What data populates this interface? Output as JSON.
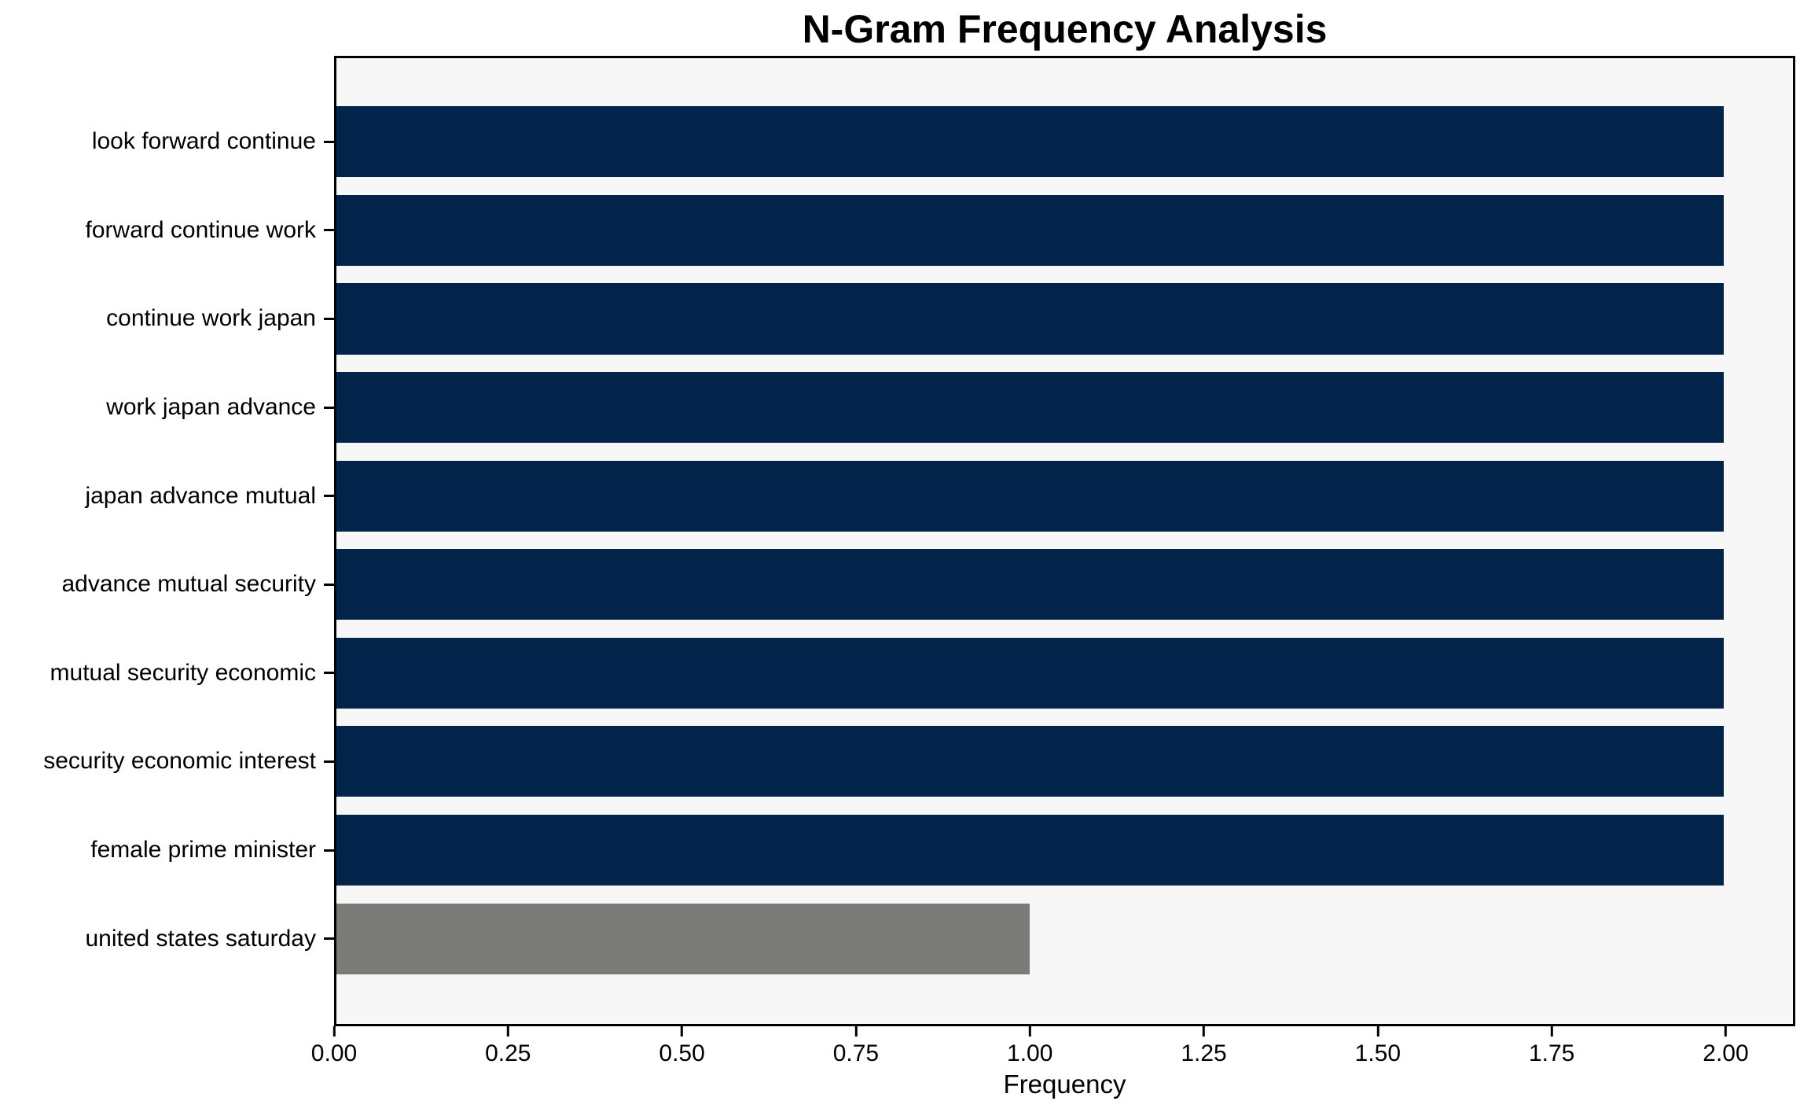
{
  "chart_data": {
    "type": "bar",
    "orientation": "horizontal",
    "title": "N-Gram Frequency Analysis",
    "xlabel": "Frequency",
    "ylabel": "",
    "categories": [
      "look forward continue",
      "forward continue work",
      "continue work japan",
      "work japan advance",
      "japan advance mutual",
      "advance mutual security",
      "mutual security economic",
      "security economic interest",
      "female prime minister",
      "united states saturday"
    ],
    "values": [
      2,
      2,
      2,
      2,
      2,
      2,
      2,
      2,
      2,
      1
    ],
    "bar_colors": [
      "#02234a",
      "#02234a",
      "#02234a",
      "#02234a",
      "#02234a",
      "#02234a",
      "#02234a",
      "#02234a",
      "#02234a",
      "#7b7b78"
    ],
    "xlim": [
      0,
      2.1
    ],
    "xticks": {
      "values": [
        0,
        0.25,
        0.5,
        0.75,
        1.0,
        1.25,
        1.5,
        1.75,
        2.0
      ],
      "labels": [
        "0.00",
        "0.25",
        "0.50",
        "0.75",
        "1.00",
        "1.25",
        "1.50",
        "1.75",
        "2.00"
      ]
    },
    "grid": false,
    "legend": "none",
    "colors": {
      "plot_background": "#f7f7f7",
      "figure_background": "#ffffff",
      "axis": "#000000",
      "default_bar": "#02234a",
      "highlight_bar": "#7b7b78",
      "text": "#000000"
    }
  }
}
